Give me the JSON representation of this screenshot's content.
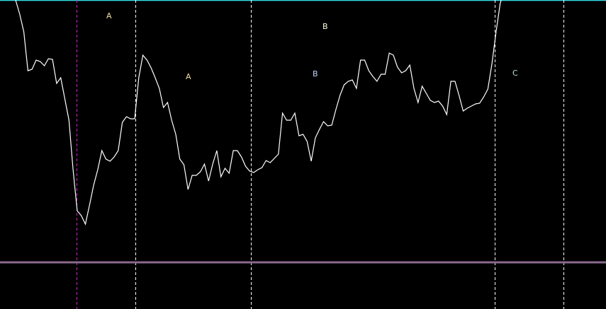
{
  "chart_data": {
    "type": "line",
    "title": "",
    "xlabel": "",
    "ylabel": "",
    "grid": false,
    "series": [
      {
        "color": "#ffffff",
        "values": [
          437,
          417,
          392,
          337,
          339,
          352,
          350,
          344,
          354,
          353,
          319,
          327,
          297,
          267,
          197,
          139,
          132,
          120,
          147,
          175,
          197,
          224,
          212,
          209,
          215,
          224,
          264,
          272,
          269,
          269,
          327,
          359,
          352,
          341,
          327,
          312,
          285,
          292,
          267,
          247,
          212,
          204,
          169,
          189,
          189,
          194,
          205,
          181,
          205,
          224,
          187,
          199,
          192,
          224,
          224,
          215,
          202,
          195,
          193,
          197,
          200,
          210,
          207,
          213,
          219,
          277,
          267,
          267,
          277,
          245,
          247,
          237,
          209,
          242,
          254,
          265,
          259,
          260,
          282,
          302,
          317,
          322,
          324,
          312,
          352,
          352,
          337,
          329,
          322,
          332,
          332,
          362,
          359,
          342,
          334,
          337,
          345,
          312,
          292,
          315,
          305,
          295,
          292,
          294,
          287,
          275,
          322,
          322,
          302,
          280,
          284,
          287,
          290,
          291,
          300,
          311,
          347,
          392,
          432,
          452,
          470,
          467,
          475,
          500,
          492,
          505,
          500
        ],
        "note_scale": "relative price"
      }
    ],
    "level_line": {
      "color": "#8a6a8e"
    },
    "top_border_color": "#33e0e8",
    "markers": [
      {
        "color": "#d020d0",
        "style": "dashed"
      },
      {
        "color": "#ffffff",
        "style": "dashed"
      },
      {
        "color": "#ffffff",
        "style": "dashed"
      },
      {
        "color": "#ffffff",
        "style": "dashed"
      },
      {
        "color": "#ffffff",
        "style": "dashed"
      }
    ],
    "annotations": [
      {
        "text": "A",
        "color": "#f0e0a0"
      },
      {
        "text": "A",
        "color": "#f0e0a0"
      },
      {
        "text": "B",
        "color": "#ffffe0"
      },
      {
        "text": "B",
        "color": "#c0d8ff"
      },
      {
        "text": "C",
        "color": "#c0d8e0"
      }
    ]
  }
}
